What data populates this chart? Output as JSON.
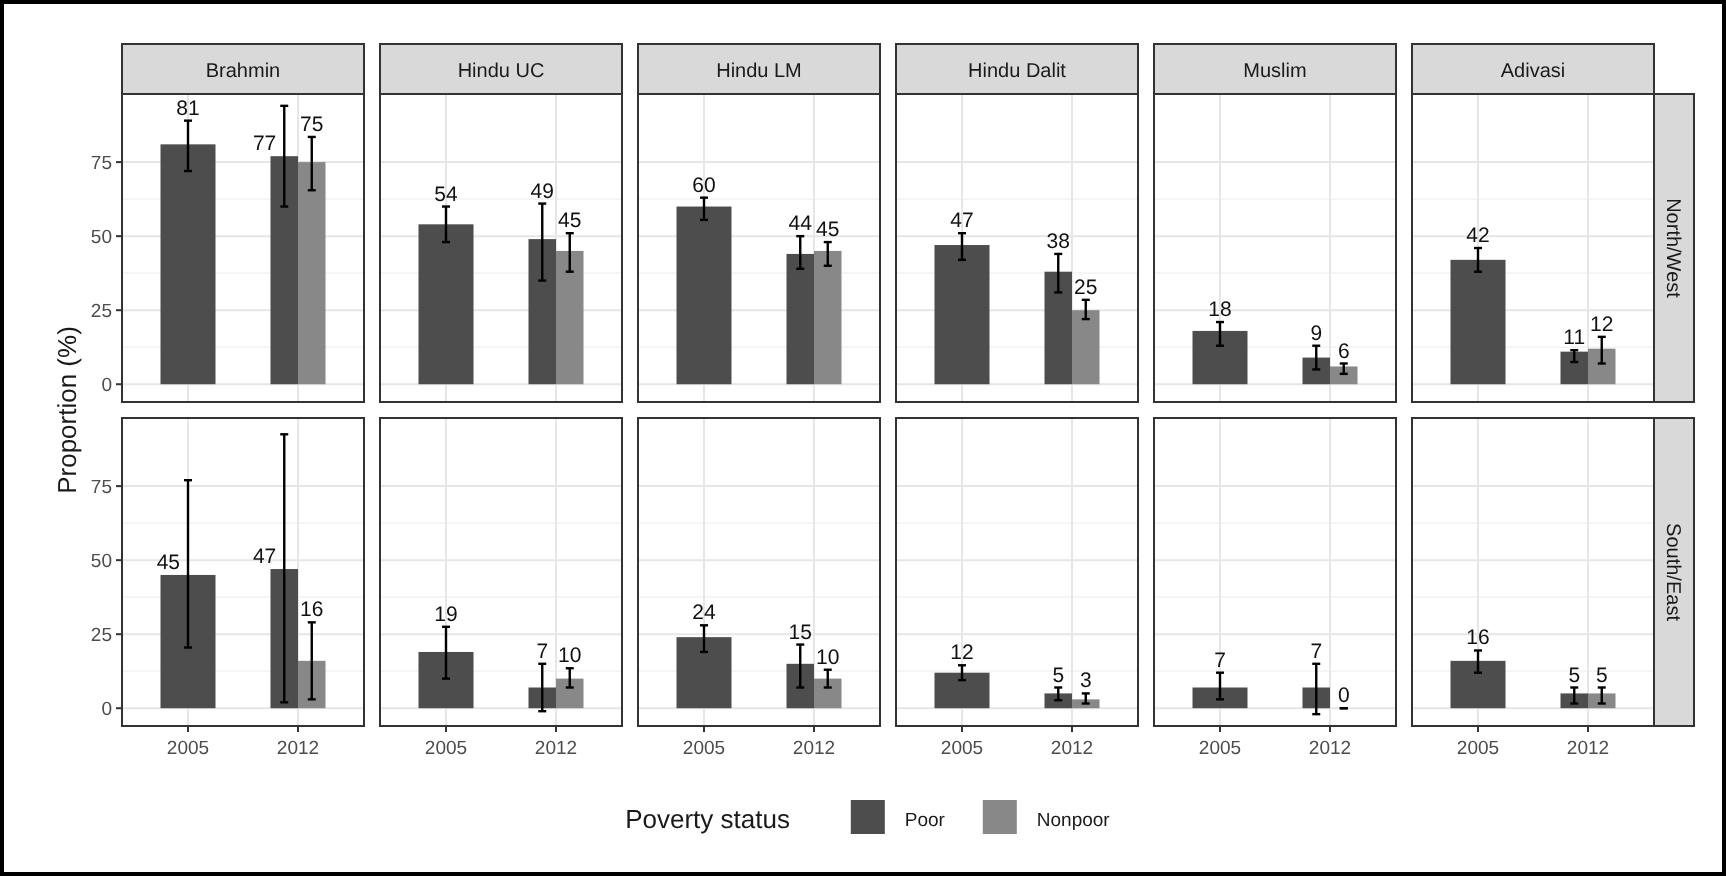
{
  "chart_data": [
    {
      "type": "bar",
      "title": "Brahmin",
      "ylabel": "Proportion (%)",
      "legend_title": "Poverty status",
      "legend": "bottom",
      "categories": [
        "2005",
        "2012"
      ],
      "ylim": [
        -6,
        98
      ],
      "yticks": [
        0,
        25,
        50,
        75
      ],
      "grid": true,
      "data_labels": true,
      "tick_labels": "y",
      "series": [
        {
          "name": "Poor",
          "color": "#4d4d4d",
          "values": [
            81,
            77
          ],
          "errors": [
            [
              72,
              89
            ],
            [
              60,
              94
            ]
          ]
        },
        {
          "name": "Nonpoor",
          "color": "#888888",
          "values": [
            null,
            75
          ],
          "errors": [
            null,
            [
              65.5,
              83.5
            ]
          ]
        }
      ]
    },
    {
      "type": "bar",
      "title": "Hindu UC",
      "categories": [
        "2005",
        "2012"
      ],
      "ylim": [
        -6,
        98
      ],
      "yticks": [
        0,
        25,
        50,
        75
      ],
      "grid": true,
      "data_labels": true,
      "tick_labels": false,
      "series": [
        {
          "color": "#4d4d4d",
          "values": [
            54,
            49
          ],
          "errors": [
            [
              48,
              60
            ],
            [
              35,
              61
            ]
          ]
        },
        {
          "color": "#888888",
          "values": [
            null,
            45
          ],
          "errors": [
            null,
            [
              38,
              51
            ]
          ]
        }
      ]
    },
    {
      "type": "bar",
      "title": "Hindu LM",
      "categories": [
        "2005",
        "2012"
      ],
      "ylim": [
        -6,
        98
      ],
      "yticks": [
        0,
        25,
        50,
        75
      ],
      "grid": true,
      "data_labels": true,
      "tick_labels": false,
      "series": [
        {
          "color": "#4d4d4d",
          "values": [
            60,
            44
          ],
          "errors": [
            [
              55.5,
              63
            ],
            [
              39,
              50
            ]
          ]
        },
        {
          "color": "#888888",
          "values": [
            null,
            45
          ],
          "errors": [
            null,
            [
              40,
              48
            ]
          ]
        }
      ]
    },
    {
      "type": "bar",
      "title": "Hindu Dalit",
      "categories": [
        "2005",
        "2012"
      ],
      "ylim": [
        -6,
        98
      ],
      "yticks": [
        0,
        25,
        50,
        75
      ],
      "grid": true,
      "data_labels": true,
      "tick_labels": false,
      "series": [
        {
          "color": "#4d4d4d",
          "values": [
            47,
            38
          ],
          "errors": [
            [
              42,
              51
            ],
            [
              31,
              44
            ]
          ]
        },
        {
          "color": "#888888",
          "values": [
            null,
            25
          ],
          "errors": [
            null,
            [
              22,
              28.5
            ]
          ]
        }
      ]
    },
    {
      "type": "bar",
      "title": "Muslim",
      "categories": [
        "2005",
        "2012"
      ],
      "ylim": [
        -6,
        98
      ],
      "yticks": [
        0,
        25,
        50,
        75
      ],
      "grid": true,
      "data_labels": true,
      "tick_labels": false,
      "series": [
        {
          "color": "#4d4d4d",
          "values": [
            18,
            9
          ],
          "errors": [
            [
              13,
              21
            ],
            [
              5,
              13
            ]
          ]
        },
        {
          "color": "#888888",
          "values": [
            null,
            6
          ],
          "errors": [
            null,
            [
              3.5,
              7
            ]
          ]
        }
      ]
    },
    {
      "type": "bar",
      "title": "Adivasi",
      "subtitle": "North/West",
      "categories": [
        "2005",
        "2012"
      ],
      "ylim": [
        -6,
        98
      ],
      "yticks": [
        0,
        25,
        50,
        75
      ],
      "grid": true,
      "data_labels": true,
      "tick_labels": false,
      "series": [
        {
          "color": "#4d4d4d",
          "values": [
            42,
            11
          ],
          "errors": [
            [
              38,
              46
            ],
            [
              7.5,
              11.5
            ]
          ]
        },
        {
          "color": "#888888",
          "values": [
            null,
            12
          ],
          "errors": [
            null,
            [
              7,
              16
            ]
          ]
        }
      ]
    },
    {
      "type": "bar",
      "categories": [
        "2005",
        "2012"
      ],
      "ylim": [
        -6,
        98
      ],
      "yticks": [
        0,
        25,
        50,
        75
      ],
      "grid": true,
      "data_labels": true,
      "series": [
        {
          "color": "#4d4d4d",
          "values": [
            45,
            47
          ],
          "errors": [
            [
              20.5,
              77
            ],
            [
              2,
              92.5
            ]
          ]
        },
        {
          "color": "#888888",
          "values": [
            null,
            16
          ],
          "errors": [
            null,
            [
              3,
              29
            ]
          ]
        }
      ]
    },
    {
      "type": "bar",
      "categories": [
        "2005",
        "2012"
      ],
      "ylim": [
        -6,
        98
      ],
      "yticks": [
        0,
        25,
        50,
        75
      ],
      "grid": true,
      "data_labels": true,
      "tick_labels": "x",
      "series": [
        {
          "color": "#4d4d4d",
          "values": [
            19,
            7
          ],
          "errors": [
            [
              10,
              27.5
            ],
            [
              -1,
              15
            ]
          ]
        },
        {
          "color": "#888888",
          "values": [
            null,
            10
          ],
          "errors": [
            null,
            [
              7,
              13.5
            ]
          ]
        }
      ]
    },
    {
      "type": "bar",
      "categories": [
        "2005",
        "2012"
      ],
      "ylim": [
        -6,
        98
      ],
      "yticks": [
        0,
        25,
        50,
        75
      ],
      "grid": true,
      "data_labels": true,
      "tick_labels": "x",
      "series": [
        {
          "color": "#4d4d4d",
          "values": [
            24,
            15
          ],
          "errors": [
            [
              19,
              28
            ],
            [
              7,
              21.5
            ]
          ]
        },
        {
          "color": "#888888",
          "values": [
            null,
            10
          ],
          "errors": [
            null,
            [
              7,
              13
            ]
          ]
        }
      ]
    },
    {
      "type": "bar",
      "categories": [
        "2005",
        "2012"
      ],
      "ylim": [
        -6,
        98
      ],
      "yticks": [
        0,
        25,
        50,
        75
      ],
      "grid": true,
      "data_labels": true,
      "tick_labels": "x",
      "series": [
        {
          "color": "#4d4d4d",
          "values": [
            12,
            5
          ],
          "errors": [
            [
              9.5,
              14.5
            ],
            [
              2.7,
              7
            ]
          ]
        },
        {
          "color": "#888888",
          "values": [
            null,
            3
          ],
          "errors": [
            null,
            [
              1.6,
              5
            ]
          ]
        }
      ]
    },
    {
      "type": "bar",
      "categories": [
        "2005",
        "2012"
      ],
      "ylim": [
        -6,
        98
      ],
      "yticks": [
        0,
        25,
        50,
        75
      ],
      "grid": true,
      "data_labels": true,
      "tick_labels": "x",
      "series": [
        {
          "color": "#4d4d4d",
          "values": [
            7,
            7
          ],
          "errors": [
            [
              3,
              12
            ],
            [
              -2,
              15
            ]
          ]
        },
        {
          "color": "#888888",
          "values": [
            null,
            0
          ],
          "errors": [
            null,
            [
              0,
              0
            ]
          ]
        }
      ]
    },
    {
      "type": "bar",
      "subtitle": "South/East",
      "categories": [
        "2005",
        "2012"
      ],
      "ylim": [
        -6,
        98
      ],
      "yticks": [
        0,
        25,
        50,
        75
      ],
      "grid": true,
      "data_labels": true,
      "tick_labels": "x",
      "series": [
        {
          "color": "#4d4d4d",
          "values": [
            16,
            5
          ],
          "errors": [
            [
              12,
              19.5
            ],
            [
              1.6,
              7
            ]
          ]
        },
        {
          "color": "#888888",
          "values": [
            null,
            5
          ],
          "errors": [
            null,
            [
              1.6,
              7
            ]
          ]
        }
      ]
    }
  ]
}
